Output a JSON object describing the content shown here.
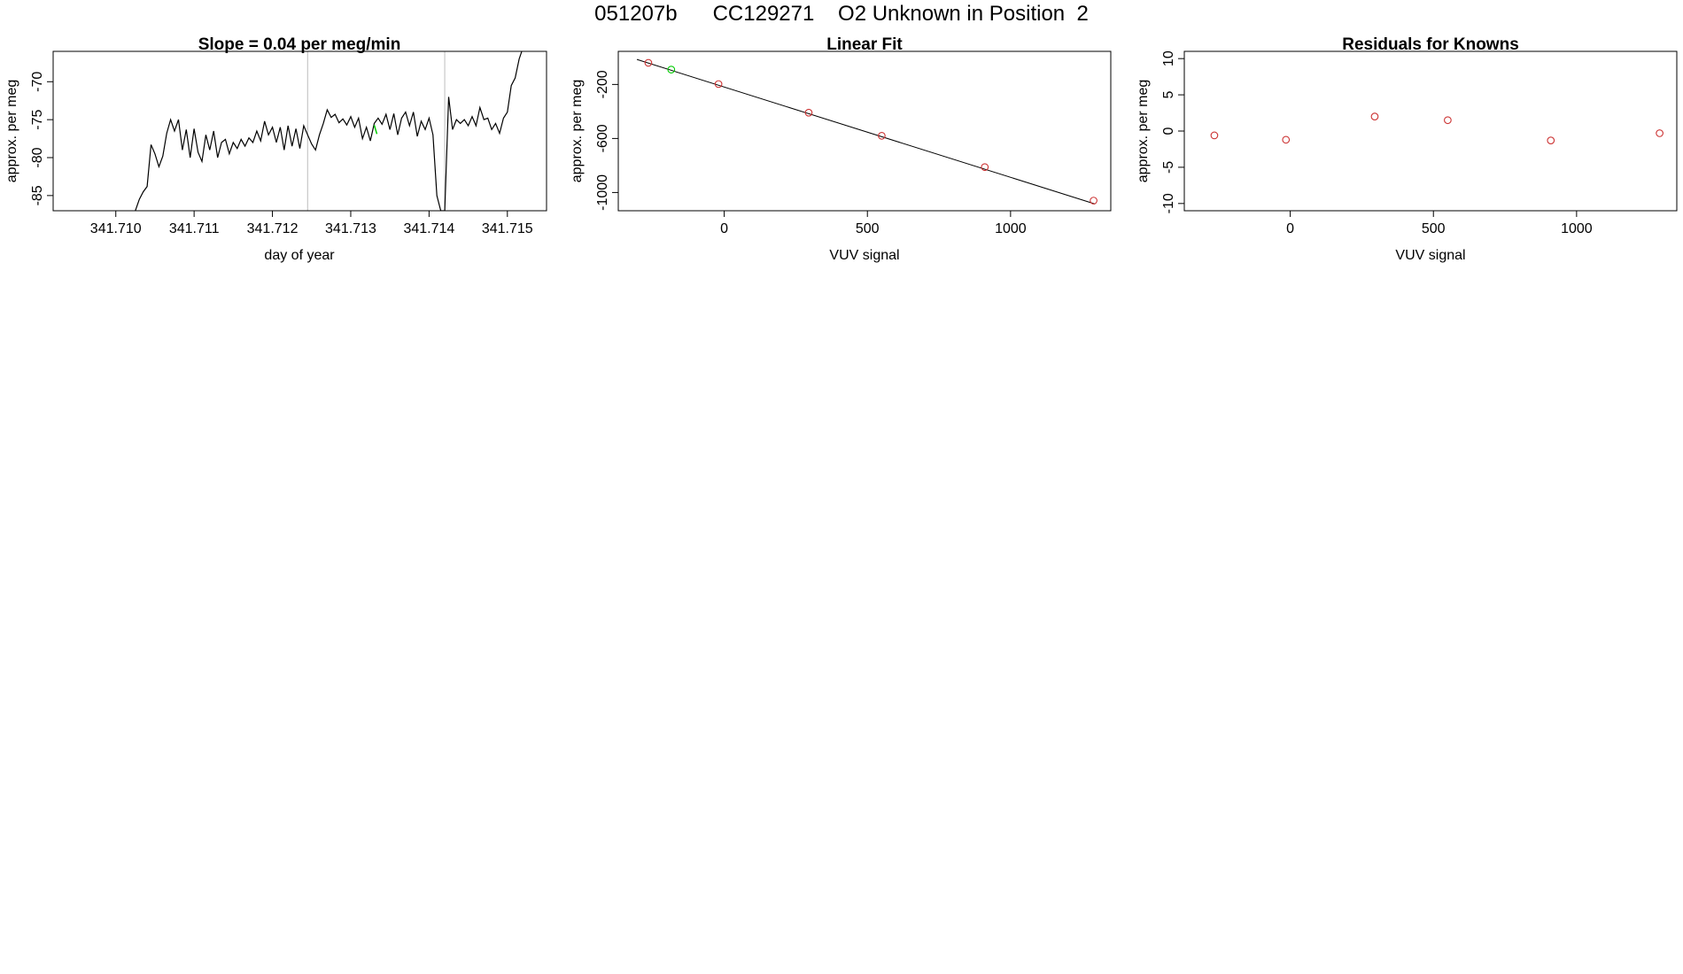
{
  "page_title": "051207b      CC129271    O2 Unknown in Position  2",
  "chart_data": [
    {
      "type": "line",
      "title": "Slope =  0.04  per meg/min",
      "xlabel": "day of year",
      "ylabel": "approx. per meg",
      "xlim": [
        341.7092,
        341.7155
      ],
      "ylim": [
        -87,
        -66
      ],
      "xticks": [
        341.71,
        341.711,
        341.712,
        341.713,
        341.714,
        341.715
      ],
      "xtick_labels": [
        "341.710",
        "341.711",
        "341.712",
        "341.713",
        "341.714",
        "341.715"
      ],
      "yticks": [
        -85,
        -80,
        -75,
        -70
      ],
      "ytick_labels": [
        "-85",
        "-80",
        "-75",
        "-70"
      ],
      "vlines": [
        341.71245,
        341.7142
      ],
      "vline_color": "#c8c8c8",
      "line_color": "#000000",
      "highlight_color": "#00cc00",
      "series": [
        {
          "x": [
            341.71025,
            341.7103,
            341.71035,
            341.7104,
            341.71045,
            341.7105,
            341.71055,
            341.7106,
            341.71065,
            341.7107,
            341.71075,
            341.7108,
            341.71085,
            341.7109,
            341.71095,
            341.711,
            341.71105,
            341.7111,
            341.71115,
            341.7112,
            341.71125,
            341.7113,
            341.71135,
            341.7114,
            341.71145,
            341.7115,
            341.71155,
            341.7116,
            341.71165,
            341.7117,
            341.71175,
            341.7118,
            341.71185,
            341.7119,
            341.71195,
            341.712,
            341.71205,
            341.7121,
            341.71215,
            341.7122,
            341.71225,
            341.7123,
            341.71235,
            341.7124,
            341.71245,
            341.7125,
            341.71255,
            341.7126,
            341.71265,
            341.7127,
            341.71275,
            341.7128,
            341.71285,
            341.7129,
            341.71295,
            341.713,
            341.71305,
            341.7131,
            341.71315,
            341.7132,
            341.71325,
            341.7133,
            341.71335,
            341.7134,
            341.71345,
            341.7135,
            341.71355,
            341.7136,
            341.71365,
            341.7137,
            341.71375,
            341.7138,
            341.71385,
            341.7139,
            341.71395,
            341.714,
            341.71405,
            341.7141,
            341.71415,
            341.7142,
            341.71425,
            341.7143,
            341.71435,
            341.7144,
            341.71445,
            341.7145,
            341.71455,
            341.7146,
            341.71465,
            341.7147,
            341.71475,
            341.7148,
            341.71485,
            341.7149,
            341.71495,
            341.715,
            341.71505,
            341.7151,
            341.71515,
            341.7152
          ],
          "y": [
            -87,
            -85.5,
            -84.5,
            -83.8,
            -78.3,
            -79.5,
            -81.2,
            -79.8,
            -76.8,
            -75.0,
            -76.5,
            -75.0,
            -79.0,
            -76.3,
            -80.0,
            -76.2,
            -79.3,
            -80.5,
            -77.0,
            -79.0,
            -76.5,
            -80.0,
            -78.0,
            -77.6,
            -79.5,
            -78.0,
            -78.8,
            -77.6,
            -78.5,
            -77.4,
            -78.0,
            -76.5,
            -77.8,
            -75.2,
            -77.0,
            -76.0,
            -78.0,
            -76.0,
            -79.0,
            -75.8,
            -78.5,
            -76.2,
            -78.8,
            -75.8,
            -77.0,
            -78.2,
            -79.0,
            -77.0,
            -75.5,
            -73.7,
            -74.7,
            -74.3,
            -75.4,
            -74.9,
            -75.7,
            -74.6,
            -76.0,
            -74.8,
            -77.5,
            -76.0,
            -77.8,
            -75.5,
            -74.8,
            -75.6,
            -74.3,
            -76.3,
            -74.2,
            -77.0,
            -74.8,
            -74.0,
            -75.8,
            -74.0,
            -77.2,
            -75.2,
            -76.3,
            -74.8,
            -77.0,
            -85.0,
            -87.0,
            -87.0,
            -72.0,
            -76.3,
            -75.0,
            -75.5,
            -75.0,
            -75.8,
            -74.6,
            -75.8,
            -73.4,
            -75.0,
            -74.8,
            -76.3,
            -75.5,
            -76.8,
            -74.8,
            -74.0,
            -70.5,
            -69.5,
            -67.0,
            -65.5
          ]
        }
      ],
      "highlight_points": [
        {
          "x": 341.7133,
          "y": -76.3
        }
      ]
    },
    {
      "type": "scatter",
      "title": "Linear Fit",
      "xlabel": "VUV signal",
      "ylabel": "approx. per meg",
      "xlim": [
        -370,
        1350
      ],
      "ylim": [
        -1135,
        45
      ],
      "xticks": [
        0,
        500,
        1000
      ],
      "xtick_labels": [
        "0",
        "500",
        "1000"
      ],
      "yticks": [
        -1000,
        -600,
        -200
      ],
      "ytick_labels": [
        "-1000",
        "-600",
        "-200"
      ],
      "point_color": "#cc3333",
      "unknown_color": "#00cc00",
      "fit_line": {
        "x": [
          -305,
          1295
        ],
        "y": [
          -15,
          -1085
        ]
      },
      "knowns": {
        "x": [
          -265,
          -20,
          295,
          550,
          910,
          1290
        ],
        "y": [
          -40,
          -197,
          -409,
          -580,
          -812,
          -1060
        ]
      },
      "unknowns": {
        "x": [
          -185
        ],
        "y": [
          -90
        ]
      }
    },
    {
      "type": "scatter",
      "title": "Residuals for Knowns",
      "xlabel": "VUV signal",
      "ylabel": "approx. per meg",
      "xlim": [
        -370,
        1350
      ],
      "ylim": [
        -11,
        11
      ],
      "xticks": [
        0,
        500,
        1000
      ],
      "xtick_labels": [
        "0",
        "500",
        "1000"
      ],
      "yticks": [
        -10,
        -5,
        0,
        5,
        10
      ],
      "ytick_labels": [
        "-10",
        "-5",
        "0",
        "5",
        "10"
      ],
      "point_color": "#cc3333",
      "knowns": {
        "x": [
          -265,
          -15,
          295,
          550,
          910,
          1290
        ],
        "y": [
          -0.6,
          -1.2,
          2.0,
          1.5,
          -1.3,
          -0.3
        ]
      }
    }
  ]
}
